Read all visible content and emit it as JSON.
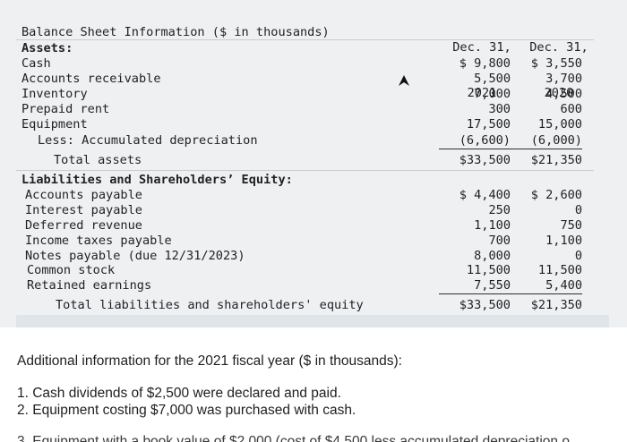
{
  "header": {
    "title": "Balance Sheet Information ($ in thousands)",
    "col1": [
      "Dec. 31,",
      "2021"
    ],
    "col2": [
      "Dec. 31,",
      "2020"
    ]
  },
  "assets": {
    "heading": "Assets:",
    "rows": [
      {
        "label": "Cash",
        "v2021": "$ 9,800",
        "v2020": "$ 3,550"
      },
      {
        "label": "Accounts receivable",
        "v2021": "5,500",
        "v2020": "3,700"
      },
      {
        "label": "Inventory",
        "v2021": "7,000",
        "v2020": "4,500"
      },
      {
        "label": "Prepaid rent",
        "v2021": "300",
        "v2020": "600"
      },
      {
        "label": "Equipment",
        "v2021": "17,500",
        "v2020": "15,000"
      },
      {
        "label": "Less: Accumulated depreciation",
        "v2021": "(6,600)",
        "v2020": "(6,000)"
      }
    ],
    "total": {
      "label": "Total assets",
      "v2021": "$33,500",
      "v2020": "$21,350"
    }
  },
  "liabilities": {
    "heading": "Liabilities and Shareholders’ Equity:",
    "rows": [
      {
        "label": "Accounts payable",
        "v2021": "$ 4,400",
        "v2020": "$ 2,600"
      },
      {
        "label": "Interest payable",
        "v2021": "250",
        "v2020": "0"
      },
      {
        "label": "Deferred revenue",
        "v2021": "1,100",
        "v2020": "750"
      },
      {
        "label": "Income taxes payable",
        "v2021": "700",
        "v2020": "1,100"
      },
      {
        "label": "Notes payable (due 12/31/2023)",
        "v2021": "8,000",
        "v2020": "0"
      },
      {
        "label": "Common stock",
        "v2021": "11,500",
        "v2020": "11,500"
      },
      {
        "label": "Retained earnings",
        "v2021": "7,550",
        "v2020": "5,400"
      }
    ],
    "total": {
      "label": "Total liabilities and shareholders' equity",
      "v2021": "$33,500",
      "v2020": "$21,350"
    }
  },
  "notes": {
    "intro": "Additional information for the 2021 fiscal year ($ in thousands):",
    "items": [
      "1. Cash dividends of $2,500 were declared and paid.",
      "2. Equipment costing $7,000 was purchased with cash.",
      "3. Equipment with a book value of $2,000 (cost of $4,500 less accumulated depreciation o"
    ]
  }
}
